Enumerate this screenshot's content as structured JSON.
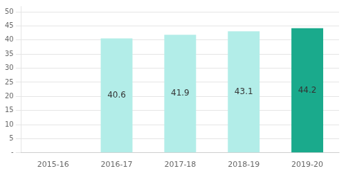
{
  "chart_data": {
    "type": "bar",
    "categories": [
      "2015-16",
      "2016-17",
      "2017-18",
      "2018-19",
      "2019-20"
    ],
    "values": [
      0,
      40.6,
      41.9,
      43.1,
      44.2
    ],
    "colors": [
      null,
      "#b2ede8",
      "#b2ede8",
      "#b2ede8",
      "#1aaa8c"
    ],
    "ylim": [
      0,
      52
    ],
    "yticks": [
      {
        "value": 0,
        "label": "-"
      },
      5,
      10,
      15,
      20,
      25,
      30,
      35,
      40,
      45,
      50
    ],
    "grid": true,
    "data_labels": true
  }
}
